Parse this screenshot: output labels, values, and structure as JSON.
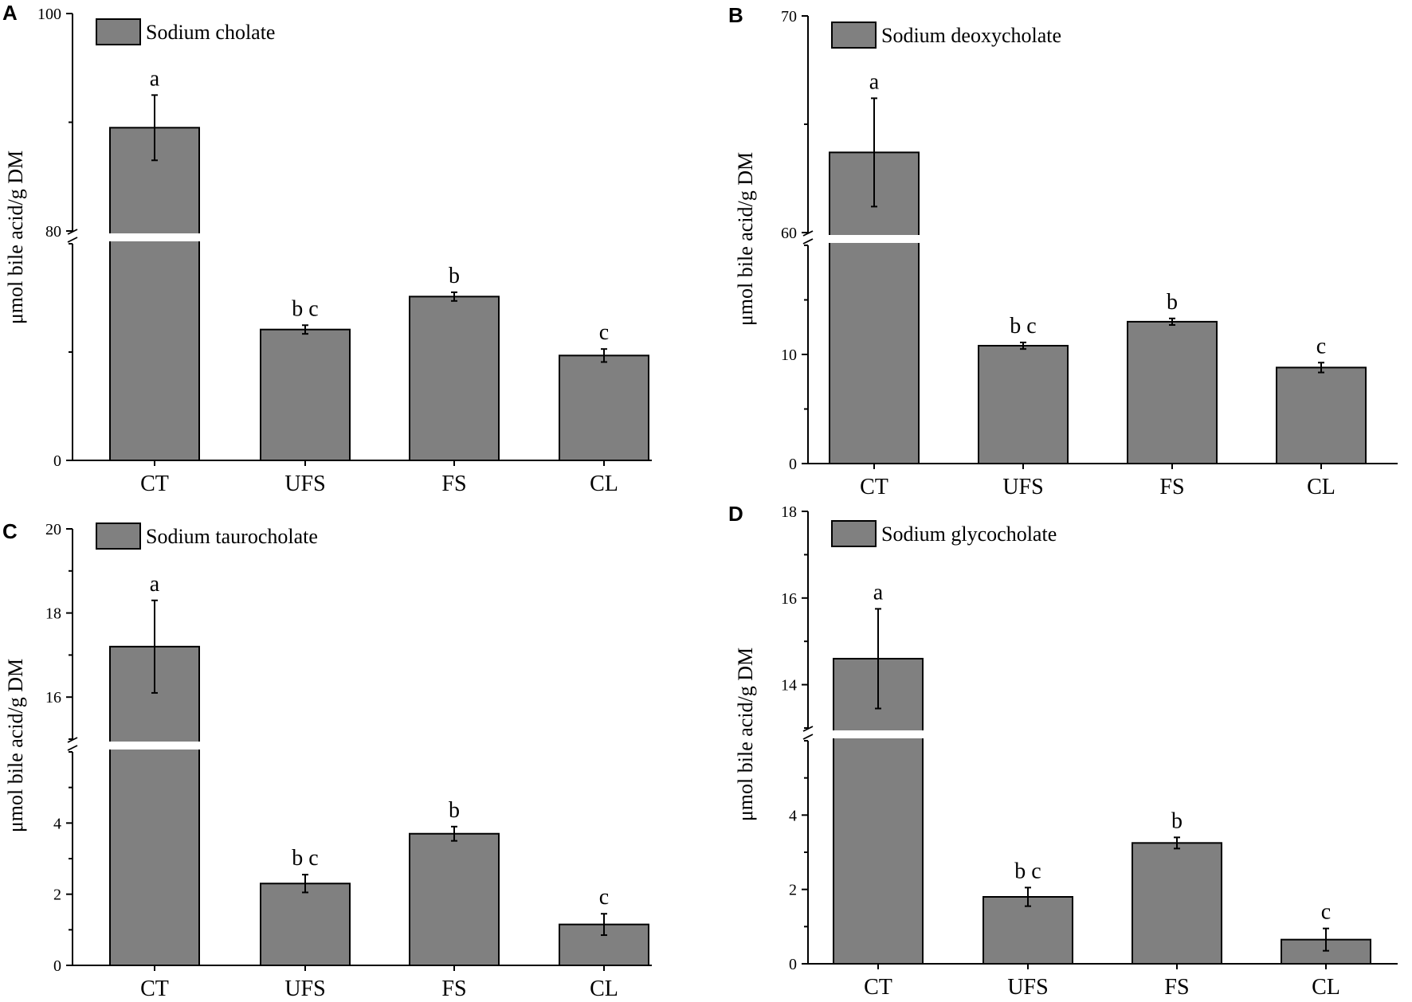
{
  "chart_data": [
    {
      "panel": "A",
      "type": "bar",
      "legend": "Sodium cholate",
      "ylabel": "μmol bile acid/g DM",
      "categories": [
        "CT",
        "UFS",
        "FS",
        "CL"
      ],
      "values": [
        89.5,
        30.2,
        37.8,
        24.2
      ],
      "errors": [
        3.0,
        1.0,
        1.0,
        1.5
      ],
      "significance": [
        "a",
        "b c",
        "b",
        "c"
      ],
      "axis_break": {
        "lower_max": 50,
        "upper_min": 80
      },
      "lower_ylim": [
        0,
        50
      ],
      "upper_ylim": [
        80,
        100
      ],
      "lower_ticks": [
        {
          "v": 0,
          "label": "0"
        }
      ],
      "upper_ticks": [
        {
          "v": 80,
          "label": "80"
        },
        {
          "v": 100,
          "label": "100"
        }
      ],
      "lower_minor": [
        25,
        50
      ],
      "upper_minor": [
        90
      ]
    },
    {
      "panel": "B",
      "type": "bar",
      "legend": "Sodium deoxycholate",
      "ylabel": "μmol bile acid/g DM",
      "categories": [
        "CT",
        "UFS",
        "FS",
        "CL"
      ],
      "values": [
        63.7,
        10.8,
        13.0,
        8.8
      ],
      "errors": [
        2.5,
        0.3,
        0.3,
        0.45
      ],
      "significance": [
        "a",
        "b c",
        "b",
        "c"
      ],
      "axis_break": {
        "lower_max": 20,
        "upper_min": 60
      },
      "lower_ylim": [
        0,
        20
      ],
      "upper_ylim": [
        60,
        70
      ],
      "lower_ticks": [
        {
          "v": 0,
          "label": "0"
        },
        {
          "v": 10,
          "label": "10"
        }
      ],
      "upper_ticks": [
        {
          "v": 60,
          "label": "60"
        },
        {
          "v": 70,
          "label": "70"
        }
      ],
      "lower_minor": [
        5,
        15,
        20
      ],
      "upper_minor": [
        65
      ]
    },
    {
      "panel": "C",
      "type": "bar",
      "legend": "Sodium taurocholate",
      "ylabel": "μmol bile acid/g DM",
      "categories": [
        "CT",
        "UFS",
        "FS",
        "CL"
      ],
      "values": [
        17.2,
        2.3,
        3.7,
        1.15
      ],
      "errors": [
        1.1,
        0.25,
        0.2,
        0.3
      ],
      "significance": [
        "a",
        "b c",
        "b",
        "c"
      ],
      "axis_break": {
        "lower_max": 6,
        "upper_min": 15
      },
      "lower_ylim": [
        0,
        6
      ],
      "upper_ylim": [
        15,
        20
      ],
      "lower_ticks": [
        {
          "v": 0,
          "label": "0"
        },
        {
          "v": 2,
          "label": "2"
        },
        {
          "v": 4,
          "label": "4"
        }
      ],
      "upper_ticks": [
        {
          "v": 16,
          "label": "16"
        },
        {
          "v": 18,
          "label": "18"
        },
        {
          "v": 20,
          "label": "20"
        }
      ],
      "lower_minor": [
        1,
        3,
        5,
        6
      ],
      "upper_minor": [
        15,
        17,
        19
      ]
    },
    {
      "panel": "D",
      "type": "bar",
      "legend": "Sodium glycocholate",
      "ylabel": "μmol bile acid/g DM",
      "categories": [
        "CT",
        "UFS",
        "FS",
        "CL"
      ],
      "values": [
        14.6,
        1.8,
        3.25,
        0.65
      ],
      "errors": [
        1.15,
        0.25,
        0.15,
        0.3
      ],
      "significance": [
        "a",
        "b c",
        "b",
        "c"
      ],
      "axis_break": {
        "lower_max": 6,
        "upper_min": 13
      },
      "lower_ylim": [
        0,
        6
      ],
      "upper_ylim": [
        13,
        18
      ],
      "lower_ticks": [
        {
          "v": 0,
          "label": "0"
        },
        {
          "v": 2,
          "label": "2"
        },
        {
          "v": 4,
          "label": "4"
        }
      ],
      "upper_ticks": [
        {
          "v": 14,
          "label": "14"
        },
        {
          "v": 16,
          "label": "16"
        },
        {
          "v": 18,
          "label": "18"
        }
      ],
      "lower_minor": [
        1,
        3,
        5,
        6
      ],
      "upper_minor": [
        13,
        15,
        17
      ]
    }
  ]
}
